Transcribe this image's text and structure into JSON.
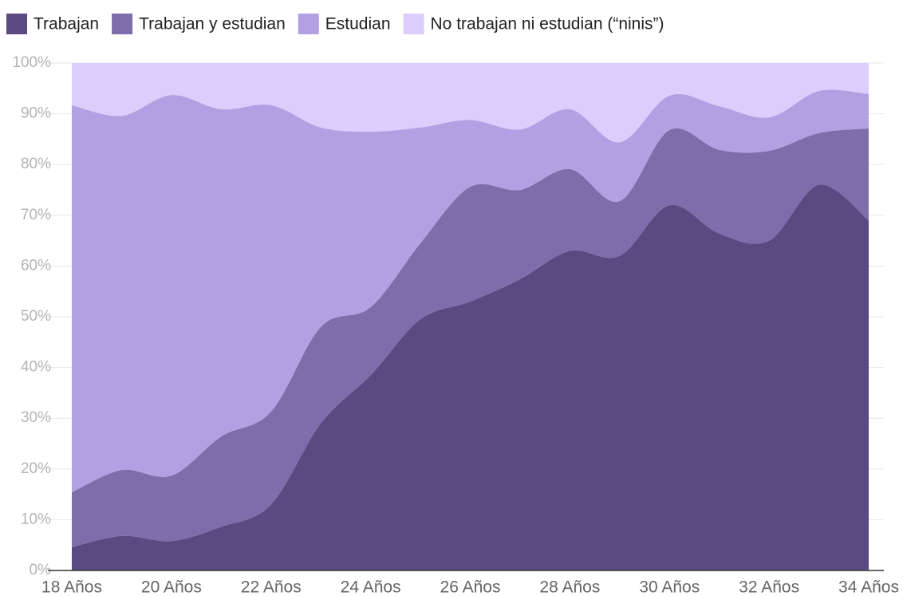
{
  "chart_data": {
    "type": "stacked_area",
    "categories": [
      "18 Años",
      null,
      "20 Años",
      null,
      "22 Años",
      null,
      "24 Años",
      null,
      "26 Años",
      null,
      "28 Años",
      null,
      "30 Años",
      null,
      "32 Años",
      null,
      "34 Años"
    ],
    "series": [
      {
        "name": "Trabajan",
        "color": "#594a82",
        "values": [
          4.6,
          6.8,
          5.8,
          8.6,
          13,
          29,
          38.5,
          49.5,
          53,
          57.4,
          63,
          62,
          72,
          66.4,
          65,
          76,
          69
        ]
      },
      {
        "name": "Trabajan y estudian",
        "color": "#7e6daa",
        "values": [
          10.8,
          13,
          12.9,
          17.8,
          18.3,
          19,
          13.4,
          15,
          22.6,
          17.6,
          16.1,
          10.8,
          14.8,
          16.5,
          17.7,
          10.2,
          18.1
        ]
      },
      {
        "name": "Estudian",
        "color": "#b3a0e2",
        "values": [
          76.3,
          69.8,
          75,
          64.5,
          60.4,
          39.3,
          34.6,
          22.8,
          13.2,
          11.9,
          11.8,
          11.6,
          6.8,
          8.6,
          6.6,
          8.3,
          6.8
        ]
      },
      {
        "name": "No trabajan ni estudian (“ninis”)",
        "color": "#dccdfd",
        "values": [
          8.3,
          10.4,
          6.3,
          9.1,
          8.3,
          12.7,
          13.5,
          12.7,
          11.2,
          13.1,
          9.1,
          15.6,
          6.4,
          8.5,
          10.7,
          5.5,
          6.1
        ]
      }
    ],
    "ylim": [
      0,
      100
    ],
    "yticks": [
      {
        "value": 0,
        "label": "0%"
      },
      {
        "value": 10,
        "label": "10%"
      },
      {
        "value": 20,
        "label": "20%"
      },
      {
        "value": 30,
        "label": "30%"
      },
      {
        "value": 40,
        "label": "40%"
      },
      {
        "value": 50,
        "label": "50%"
      },
      {
        "value": 60,
        "label": "60%"
      },
      {
        "value": 70,
        "label": "70%"
      },
      {
        "value": 80,
        "label": "80%"
      },
      {
        "value": 90,
        "label": "90%"
      },
      {
        "value": 100,
        "label": "100%"
      }
    ],
    "grid": true,
    "legend": "top"
  }
}
